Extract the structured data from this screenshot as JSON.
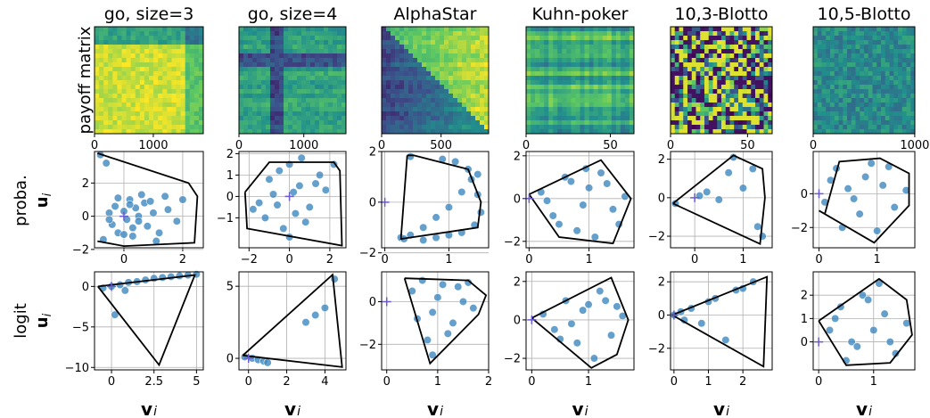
{
  "figure": {
    "row_labels": {
      "payoff": "payoff matrix",
      "proba_line1": "proba.",
      "logit_line1": "logit",
      "u_main": "u",
      "u_sub": "i"
    },
    "xlabel_main": "v",
    "xlabel_sub": "i"
  },
  "chart_data": [
    {
      "type": "heatmap",
      "title": "go, size=3",
      "xticks": [
        "0",
        "1000"
      ],
      "xlim": [
        0,
        1850
      ],
      "palette": "viridis",
      "pattern": "blocky"
    },
    {
      "type": "heatmap",
      "title": "go, size=4",
      "xticks": [
        "0",
        "1000"
      ],
      "xlim": [
        0,
        1650
      ],
      "palette": "viridis",
      "pattern": "cross"
    },
    {
      "type": "heatmap",
      "title": "AlphaStar",
      "xticks": [
        "0",
        "500"
      ],
      "xlim": [
        0,
        900
      ],
      "palette": "viridis",
      "pattern": "triangular"
    },
    {
      "type": "heatmap",
      "title": "Kuhn-poker",
      "xticks": [
        "0",
        "50"
      ],
      "xlim": [
        0,
        64
      ],
      "palette": "viridis",
      "pattern": "stripes"
    },
    {
      "type": "heatmap",
      "title": "10,3-Blotto",
      "xticks": [
        "0",
        "50"
      ],
      "xlim": [
        0,
        66
      ],
      "palette": "viridis",
      "pattern": "shards"
    },
    {
      "type": "heatmap",
      "title": "10,5-Blotto",
      "xticks": [
        "0",
        "1000"
      ],
      "xlim": [
        0,
        1001
      ],
      "palette": "viridis",
      "pattern": "noise"
    },
    {
      "type": "scatter",
      "row": "proba",
      "xlim": [
        -1,
        2.7
      ],
      "ylim": [
        -1.9,
        3.9
      ],
      "xticks": [
        0,
        2
      ],
      "yticks": [
        -2,
        0,
        2
      ],
      "x": [
        -0.8,
        -0.6,
        -0.5,
        -0.4,
        -0.3,
        -0.2,
        0,
        0.1,
        0.2,
        0.3,
        0.4,
        0.5,
        0.6,
        0.8,
        1,
        1.2,
        1.5,
        1.8,
        -0.7,
        -0.2,
        0.3,
        0.7,
        1.1,
        0.9,
        0.5,
        0,
        -0.5,
        0.2,
        1.4,
        2
      ],
      "y": [
        3.7,
        3.2,
        0.2,
        -0.5,
        0.6,
        -1,
        0.3,
        -0.2,
        1,
        -1.2,
        0.5,
        0,
        1.3,
        -0.6,
        0.2,
        -1,
        0.4,
        -0.3,
        -1.4,
        1.1,
        -0.7,
        0.8,
        -1.5,
        0.9,
        -0.3,
        -1.1,
        -0.2,
        0.7,
        1.2,
        1
      ],
      "hull_x": [
        -0.9,
        2.2,
        2.5,
        2.4,
        0,
        -0.9
      ],
      "hull_y": [
        3.8,
        2,
        1.2,
        -1.6,
        -1.8,
        -1.5
      ]
    },
    {
      "type": "scatter",
      "row": "proba",
      "xlim": [
        -2.5,
        2.8
      ],
      "ylim": [
        -2.4,
        2.1
      ],
      "xticks": [
        -2,
        0,
        2
      ],
      "yticks": [
        -1,
        0,
        1,
        2
      ],
      "x": [
        -1.5,
        -1,
        -0.5,
        0,
        0.5,
        1,
        1.5,
        -1.2,
        -0.3,
        0.2,
        0.8,
        1.3,
        -0.8,
        0.3,
        -0.6,
        1.8,
        2.2,
        0.6,
        -1.8,
        0
      ],
      "y": [
        -0.3,
        0.8,
        1.2,
        1.5,
        0.5,
        -0.5,
        1,
        -1,
        -1.5,
        0.2,
        -1.2,
        0.6,
        0.1,
        -0.8,
        -0.4,
        0.3,
        1.5,
        1.8,
        -0.6,
        -1.9
      ],
      "hull_x": [
        -2.2,
        -1,
        2.2,
        2.5,
        2.6,
        -2.1,
        -2.2
      ],
      "hull_y": [
        0.2,
        1.6,
        1.6,
        1.2,
        -2.3,
        -1.5,
        0.2
      ]
    },
    {
      "type": "scatter",
      "row": "proba",
      "xlim": [
        -0.05,
        1.62
      ],
      "ylim": [
        -1.8,
        2
      ],
      "xticks": [
        0,
        1
      ],
      "yticks": [
        -2,
        0,
        2
      ],
      "x": [
        0.25,
        0.4,
        0.6,
        0.8,
        1,
        1.2,
        1.35,
        1.45,
        1.5,
        1.4,
        1.2,
        1,
        0.8,
        0.6,
        0.4,
        0.3,
        1.3,
        1.1,
        0.9,
        1.45
      ],
      "y": [
        -1.4,
        -1.3,
        -1,
        -0.6,
        -0.2,
        0.4,
        0.9,
        0.3,
        -0.4,
        -0.9,
        -1.2,
        -1.3,
        -1.4,
        -1.5,
        1.8,
        -1.45,
        1.3,
        1.6,
        1.7,
        1.1
      ],
      "hull_x": [
        0.35,
        0.45,
        1.3,
        1.5,
        1.45,
        0.25,
        0.35
      ],
      "hull_y": [
        1.85,
        1.85,
        1.3,
        0,
        -1,
        -1.45,
        1.85
      ]
    },
    {
      "type": "scatter",
      "row": "proba",
      "xlim": [
        -0.05,
        1.75
      ],
      "ylim": [
        -2.3,
        2.2
      ],
      "xticks": [
        0,
        1
      ],
      "yticks": [
        -2,
        0,
        2
      ],
      "x": [
        0.2,
        0.4,
        0.6,
        0.8,
        1,
        1.2,
        1.4,
        1.6,
        0.5,
        0.9,
        1.3,
        0.7,
        1.1,
        0.3,
        0.95,
        1.5
      ],
      "y": [
        0.3,
        -0.8,
        1,
        -1.5,
        0.5,
        1.2,
        -0.5,
        0.1,
        -1.2,
        -0.3,
        0.7,
        0.8,
        -1.8,
        -0.1,
        1.4,
        -1.2
      ],
      "hull_x": [
        0,
        1.2,
        1.7,
        1.4,
        0.5,
        0
      ],
      "hull_y": [
        0.2,
        1.8,
        0,
        -2.1,
        -1.8,
        0.2
      ]
    },
    {
      "type": "scatter",
      "row": "proba",
      "xlim": [
        -0.5,
        1.6
      ],
      "ylim": [
        -2.6,
        2.4
      ],
      "xticks": [
        0,
        1
      ],
      "yticks": [
        -2,
        0,
        2
      ],
      "x": [
        -0.4,
        0.1,
        0.25,
        0.8,
        0.5,
        1.2,
        1.3,
        1.4,
        1,
        0.7
      ],
      "y": [
        -0.3,
        0.1,
        0.3,
        2.1,
        -0.1,
        1.5,
        -1.5,
        -2,
        0.5,
        1.3
      ],
      "hull_x": [
        -0.45,
        0.8,
        1.4,
        1.45,
        1.35,
        -0.45
      ],
      "hull_y": [
        -0.3,
        2.2,
        1.5,
        0,
        -2.4,
        -0.3
      ]
    },
    {
      "type": "scatter",
      "row": "proba",
      "xlim": [
        -0.1,
        1.65
      ],
      "ylim": [
        -3.2,
        2.5
      ],
      "xticks": [
        0,
        1
      ],
      "yticks": [
        -2,
        0
      ],
      "x": [
        0.1,
        0.3,
        0.5,
        0.7,
        0.9,
        1.1,
        1.3,
        1.5,
        0.4,
        0.8,
        1.2,
        0.6,
        1,
        0.2
      ],
      "y": [
        -0.5,
        1.5,
        0.3,
        -1.2,
        1.8,
        0.5,
        -0.8,
        0.2,
        -2,
        1,
        1.6,
        -0.3,
        -2.2,
        0.8
      ],
      "hull_x": [
        0.1,
        0.35,
        1.05,
        1.55,
        1.55,
        0.95,
        0,
        0.1
      ],
      "hull_y": [
        -1.2,
        1.9,
        2.1,
        1.2,
        -0.7,
        -2.9,
        -1,
        -1.2
      ]
    },
    {
      "type": "scatter",
      "row": "logit",
      "xlim": [
        -1,
        5.4
      ],
      "ylim": [
        -10.3,
        1.8
      ],
      "xticks": [
        0,
        2.5,
        5
      ],
      "yticks": [
        -10,
        -5,
        0
      ],
      "x": [
        -0.5,
        0,
        0.5,
        1,
        1.5,
        2,
        2.5,
        3,
        3.5,
        4,
        4.5,
        5,
        0.2,
        0.8
      ],
      "y": [
        -0.2,
        0,
        0.2,
        0.5,
        0.6,
        0.8,
        1,
        1.1,
        1.2,
        1.3,
        1.4,
        1.5,
        -3.5,
        -0.5
      ],
      "hull_x": [
        -0.8,
        4.9,
        2.8,
        -0.8
      ],
      "hull_y": [
        0,
        1.4,
        -9.7,
        0
      ]
    },
    {
      "type": "scatter",
      "row": "logit",
      "xlim": [
        -0.5,
        5.1
      ],
      "ylim": [
        -0.8,
        6
      ],
      "xticks": [
        0,
        2,
        4
      ],
      "yticks": [
        0,
        5
      ],
      "x": [
        -0.2,
        0.2,
        0.5,
        0.8,
        1,
        3,
        3.5,
        4,
        4.5
      ],
      "y": [
        0.1,
        0,
        -0.1,
        -0.2,
        -0.3,
        2.5,
        3,
        3.5,
        5.5
      ],
      "hull_x": [
        -0.3,
        4.4,
        4.9,
        -0.3
      ],
      "hull_y": [
        0.2,
        5.8,
        -0.6,
        0.2
      ]
    },
    {
      "type": "scatter",
      "row": "logit",
      "xlim": [
        -0.1,
        2
      ],
      "ylim": [
        -3.2,
        1.4
      ],
      "xticks": [
        0,
        1,
        2
      ],
      "yticks": [
        -2,
        0
      ],
      "x": [
        0.5,
        0.7,
        0.9,
        1.1,
        1.3,
        1.5,
        1.7,
        0.6,
        1,
        1.4,
        0.8,
        1.2,
        1.6,
        0.9
      ],
      "y": [
        0.5,
        1,
        -0.5,
        0.8,
        -1,
        0,
        -0.3,
        -0.8,
        0.2,
        0.7,
        -1.8,
        -1.5,
        0.9,
        -2.5
      ],
      "hull_x": [
        0.35,
        1.6,
        1.95,
        1.8,
        0.85,
        0.35
      ],
      "hull_y": [
        1.1,
        1,
        0.3,
        -0.6,
        -2.9,
        1.1
      ]
    },
    {
      "type": "scatter",
      "row": "logit",
      "xlim": [
        -0.1,
        1.8
      ],
      "ylim": [
        -2.6,
        2.5
      ],
      "xticks": [
        0,
        1
      ],
      "yticks": [
        -2,
        0,
        2
      ],
      "x": [
        0.2,
        0.4,
        0.6,
        0.8,
        1,
        1.2,
        1.4,
        1.6,
        0.5,
        0.9,
        1.3,
        0.7,
        1.1,
        1.5
      ],
      "y": [
        0.3,
        -0.5,
        1,
        -1.2,
        0.8,
        1.5,
        -0.8,
        0.2,
        -1,
        0.5,
        1,
        -0.2,
        -2,
        0.7
      ],
      "hull_x": [
        0,
        1.4,
        1.7,
        1.5,
        1.05,
        0
      ],
      "hull_y": [
        0.1,
        2.2,
        0,
        -1.8,
        -2.5,
        0.1
      ]
    },
    {
      "type": "scatter",
      "row": "logit",
      "xlim": [
        -0.1,
        2.85
      ],
      "ylim": [
        -3.3,
        2.6
      ],
      "xticks": [
        0,
        1,
        2
      ],
      "yticks": [
        -2,
        0,
        2
      ],
      "x": [
        0,
        0.2,
        0.5,
        0.8,
        1,
        1.2,
        1.5,
        1.8,
        2,
        2.3,
        0.3
      ],
      "y": [
        0,
        0.2,
        0.4,
        -0.5,
        0.8,
        1,
        -1.5,
        1.5,
        1.6,
        2,
        -0.3
      ],
      "hull_x": [
        -0.05,
        2.7,
        2.6,
        -0.05
      ],
      "hull_y": [
        0,
        2.3,
        -3.1,
        0
      ]
    },
    {
      "type": "scatter",
      "row": "logit",
      "xlim": [
        -0.1,
        1.75
      ],
      "ylim": [
        -1.2,
        3
      ],
      "xticks": [
        0,
        1
      ],
      "yticks": [
        0,
        1,
        2
      ],
      "x": [
        0.2,
        0.4,
        0.6,
        0.8,
        1,
        1.2,
        1.4,
        1.6,
        0.5,
        0.9,
        1.3,
        0.7,
        1.1,
        0.3
      ],
      "y": [
        0.5,
        1.5,
        0,
        2,
        0.5,
        1.2,
        -0.5,
        0.8,
        -0.8,
        1.8,
        0,
        -0.2,
        2.5,
        1
      ],
      "hull_x": [
        0,
        1.1,
        1.6,
        1.7,
        1.3,
        0.5,
        0
      ],
      "hull_y": [
        0.9,
        2.7,
        1.8,
        0.3,
        -0.9,
        -1,
        0.9
      ]
    }
  ]
}
